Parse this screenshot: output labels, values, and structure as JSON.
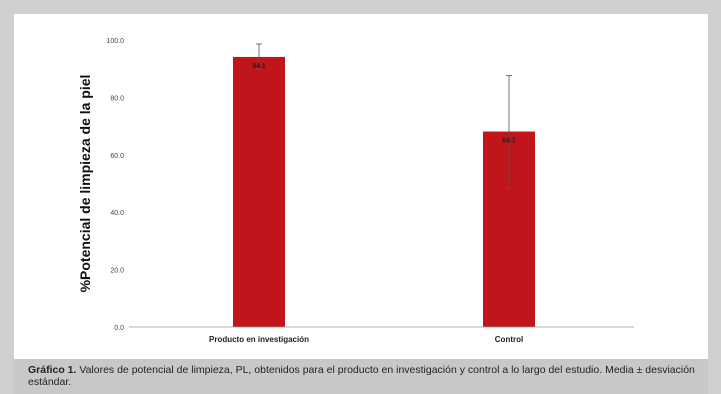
{
  "chart_data": {
    "type": "bar",
    "categories": [
      "Producto en investigación",
      "Control"
    ],
    "values": [
      94.1,
      68.1
    ],
    "error": [
      4.5,
      19.5
    ],
    "data_labels": [
      "94.1",
      "68.1"
    ],
    "ylabel": "%Potencial de limpieza de la piel",
    "xlabel": "",
    "ylim": [
      0,
      100
    ],
    "yticks": [
      "0.0",
      "20.0",
      "40.0",
      "60.0",
      "80.0",
      "100.0"
    ],
    "bar_color": "#c0161b",
    "error_bar_color": "#555555",
    "grid": false
  },
  "caption": {
    "label": "Gráfico 1.",
    "text": " Valores de potencial de limpieza, PL, obtenidos para el producto en investigación y control a lo largo del estudio. Media ± desviación estándar."
  },
  "colors": {
    "background": "#cfcfcf",
    "panel": "#ffffff",
    "caption_bg": "#c8c8c8"
  }
}
